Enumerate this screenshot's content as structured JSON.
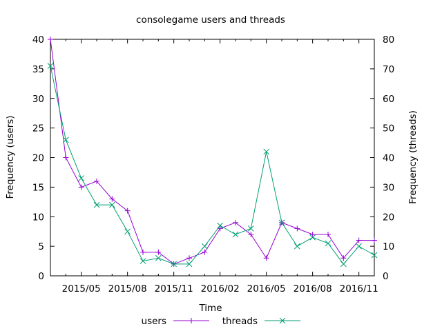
{
  "chart_data": {
    "type": "line",
    "title": "consolegame users and threads",
    "xlabel": "Time",
    "ylabel_left": "Frequency (users)",
    "ylabel_right": "Frequency (threads)",
    "x_tick_labels": [
      "2015/05",
      "2015/08",
      "2015/11",
      "2016/02",
      "2016/05",
      "2016/08",
      "2016/11"
    ],
    "ylim_left": [
      0,
      40
    ],
    "ylim_right": [
      0,
      80
    ],
    "y_ticks_left": [
      "0",
      "5",
      "10",
      "15",
      "20",
      "25",
      "30",
      "35",
      "40"
    ],
    "y_ticks_right": [
      "0",
      "10",
      "20",
      "30",
      "40",
      "50",
      "60",
      "70",
      "80"
    ],
    "grid": false,
    "legend_position": "bottom",
    "x": [
      "2015/03",
      "2015/04",
      "2015/05",
      "2015/06",
      "2015/07",
      "2015/08",
      "2015/09",
      "2015/10",
      "2015/11",
      "2015/12",
      "2016/01",
      "2016/02",
      "2016/03",
      "2016/04",
      "2016/05",
      "2016/06",
      "2016/07",
      "2016/08",
      "2016/09",
      "2016/10",
      "2016/11",
      "2016/12"
    ],
    "series": [
      {
        "name": "users",
        "axis": "left",
        "color": "#9400d3",
        "marker": "+",
        "values": [
          40,
          20,
          15,
          16,
          13,
          11,
          4,
          4,
          2,
          3,
          4,
          8,
          9,
          7,
          3,
          9,
          8,
          7,
          7,
          3,
          6,
          6
        ]
      },
      {
        "name": "threads",
        "axis": "right",
        "color": "#009e73",
        "marker": "x",
        "values": [
          71,
          46,
          33,
          24,
          24,
          15,
          5,
          6,
          4,
          4,
          10,
          17,
          14,
          16,
          42,
          18,
          10,
          13,
          11,
          4,
          10,
          7
        ]
      }
    ]
  }
}
